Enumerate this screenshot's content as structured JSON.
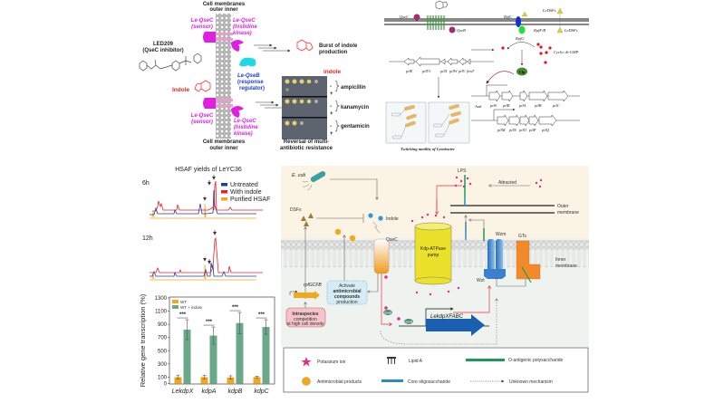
{
  "panel_a": {
    "membrane_top": "Cell membranes",
    "membrane_top_sides": "outer   inner",
    "membrane_bottom": "Cell membranes",
    "membrane_bottom_sides": "outer   inner",
    "sensor_top": [
      "Le-QseC",
      "(sensor)"
    ],
    "sensor_bottom": [
      "Le-QseC",
      "(sensor)"
    ],
    "kinase_top": [
      "Le-QseC",
      "(histidine",
      "kinase)"
    ],
    "kinase_bottom": [
      "Le-QseC",
      "(histidine",
      "kinase)"
    ],
    "inhibitor": [
      "LED209",
      "(QseC inhibitor)"
    ],
    "indole_label": "Indole",
    "regulator": [
      "Le-QseB",
      "(response",
      "regulator)"
    ],
    "burst": [
      "Burst of indole",
      "production"
    ],
    "plate_indole_label": "indole",
    "plate_signs": [
      "-",
      "+",
      "-",
      "+",
      "-",
      "+"
    ],
    "antibiotics": [
      "ampicillin",
      "kanamycin",
      "gentamicin"
    ],
    "reversal": [
      "Reversal of multi-",
      "antibiotic resistance"
    ]
  },
  "panel_b": {
    "qsec": "QseC",
    "qseb": "QseB",
    "rpfc": "RpfC",
    "rpfg": "RpfG",
    "rpffb": "RpfF/B",
    "ledsf_top": "LeDSFs",
    "ledsf_bottom": "LeDSFs",
    "cdg": "Cyclic di-GMP",
    "clp": "Clp",
    "and": "And",
    "genes_left": [
      "pilE",
      "pilY1",
      "pilX",
      "pilW",
      "pilV",
      "fimT"
    ],
    "genes_right_1": [
      "pilS",
      "pilR",
      "pilA",
      "pilB",
      "pilC"
    ],
    "genes_right_2": [
      "pilM",
      "pilN",
      "pilO",
      "pilP",
      "pilQ"
    ],
    "caption": "Twitching motility of Lysobacter"
  },
  "panel_c": {
    "title": "HSAF yields of LeYC36",
    "time_6h": "6h",
    "time_12h": "12h",
    "legend": [
      {
        "label": "Untreated",
        "color": "#1f3fa0"
      },
      {
        "label": "With indole",
        "color": "#e8202a"
      },
      {
        "label": "Purified HSAF",
        "color": "#f2a81c"
      }
    ]
  },
  "chart_data": {
    "type": "bar",
    "categories": [
      "LekdpX",
      "kdpA",
      "kdpB",
      "kdpC"
    ],
    "series": [
      {
        "name": "WT",
        "color": "#f2a81c",
        "values": [
          100,
          100,
          95,
          100
        ],
        "errors": [
          30,
          25,
          25,
          15
        ]
      },
      {
        "name": "WT + indole",
        "color": "#6aa88a",
        "values": [
          820,
          730,
          920,
          860
        ],
        "errors": [
          150,
          130,
          160,
          110
        ]
      }
    ],
    "significance": [
      "***",
      "***",
      "***",
      "***"
    ],
    "ylabel": "Relative gene transcription (%)",
    "ylim": [
      0,
      1300
    ],
    "yticks": [
      0,
      100,
      300,
      500,
      700,
      900,
      1100,
      1300
    ],
    "legend_position": "top-left"
  },
  "panel_d": {
    "ecoli": "E. coli",
    "dsfs": "DSFs",
    "indole": "Indole",
    "qsec": "QseC",
    "pump": [
      "Kdp-ATPase",
      "pump"
    ],
    "lps": "LPS",
    "attracted": "Attracted",
    "outer_membrane": [
      "Outer",
      "membrane"
    ],
    "inner_membrane": [
      "Inner",
      "membrane"
    ],
    "wzm": "Wzm",
    "wzt": "Wzt",
    "gts": "GTs",
    "rpf": "rpfGCFB",
    "activate": [
      "Activate",
      "antimicrobial",
      "compounds",
      "production"
    ],
    "intraspecies": [
      "Intraspecies",
      "competition",
      "at high cell density"
    ],
    "operon": "LekdpXFABC",
    "qseb": "QseB",
    "p": "P"
  },
  "legend_d": {
    "items": [
      "Potassium ion",
      "Lipid A",
      "O-antigenic polysaccharide",
      "Antimicrobial products",
      "Core oligosaccharide",
      "Unknown mechanism"
    ]
  }
}
